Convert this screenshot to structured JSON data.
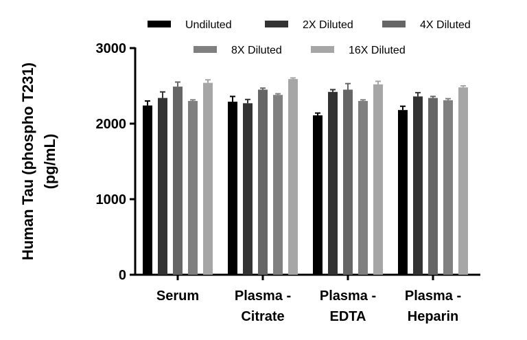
{
  "chart_data": {
    "type": "bar",
    "title": "",
    "xlabel": "",
    "ylabel_lines": [
      "Human Tau (phospho T231)",
      "(pg/mL)"
    ],
    "ylim": [
      0,
      3000
    ],
    "yticks": [
      0,
      1000,
      2000,
      3000
    ],
    "grid": false,
    "legend_position": "top",
    "categories": [
      [
        "Serum"
      ],
      [
        "Plasma -",
        "Citrate"
      ],
      [
        "Plasma -",
        "EDTA"
      ],
      [
        "Plasma -",
        "Heparin"
      ]
    ],
    "series": [
      {
        "name": "Undiluted",
        "color": "#000000",
        "values": [
          2240,
          2290,
          2110,
          2180
        ],
        "errors": [
          60,
          70,
          30,
          50
        ]
      },
      {
        "name": "2X Diluted",
        "color": "#333333",
        "values": [
          2340,
          2270,
          2420,
          2360
        ],
        "errors": [
          80,
          50,
          30,
          50
        ]
      },
      {
        "name": "4X Diluted",
        "color": "#666666",
        "values": [
          2490,
          2450,
          2450,
          2340
        ],
        "errors": [
          60,
          20,
          80,
          20
        ]
      },
      {
        "name": "8X Diluted",
        "color": "#808080",
        "values": [
          2300,
          2380,
          2300,
          2310
        ],
        "errors": [
          15,
          15,
          15,
          20
        ]
      },
      {
        "name": "16X Diluted",
        "color": "#a6a6a6",
        "values": [
          2540,
          2590,
          2520,
          2480
        ],
        "errors": [
          40,
          15,
          40,
          20
        ]
      }
    ]
  }
}
